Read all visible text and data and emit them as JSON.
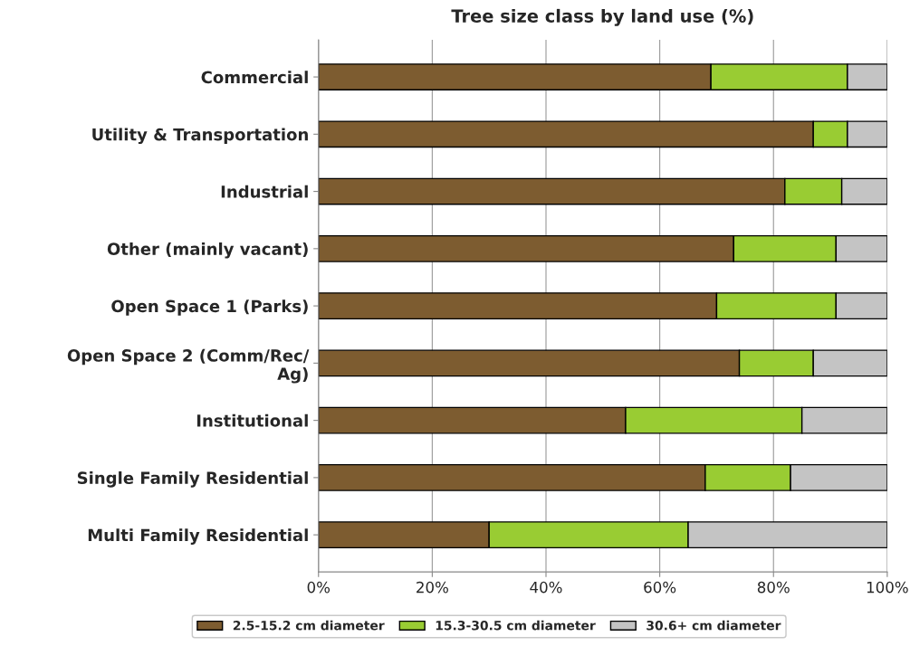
{
  "chart_data": {
    "type": "bar",
    "orientation": "horizontal",
    "stacked": true,
    "title": "Tree size class by land use (%)",
    "categories": [
      "Commercial",
      "Utility & Transportation",
      "Industrial",
      "Other (mainly vacant)",
      "Open Space 1 (Parks)",
      "Open Space 2 (Comm/Rec/\nAg)",
      "Institutional",
      "Single Family Residential",
      "Multi Family Residential"
    ],
    "series": [
      {
        "name": "2.5-15.2 cm diameter",
        "color": "#7d5c30",
        "values": [
          69,
          87,
          82,
          73,
          70,
          74,
          54,
          68,
          30
        ]
      },
      {
        "name": "15.3-30.5 cm diameter",
        "color": "#99cc33",
        "values": [
          24,
          6,
          10,
          18,
          21,
          13,
          31,
          15,
          35
        ]
      },
      {
        "name": "30.6+ cm diameter",
        "color": "#c4c4c4",
        "values": [
          7,
          7,
          8,
          9,
          9,
          13,
          15,
          17,
          35
        ]
      }
    ],
    "xlim": [
      0,
      100
    ],
    "xticks": [
      {
        "value": 0,
        "label": "0%"
      },
      {
        "value": 20,
        "label": "20%"
      },
      {
        "value": 40,
        "label": "40%"
      },
      {
        "value": 60,
        "label": "60%"
      },
      {
        "value": 80,
        "label": "80%"
      },
      {
        "value": 100,
        "label": "100%"
      }
    ],
    "grid": "x",
    "legend": "bottom"
  }
}
